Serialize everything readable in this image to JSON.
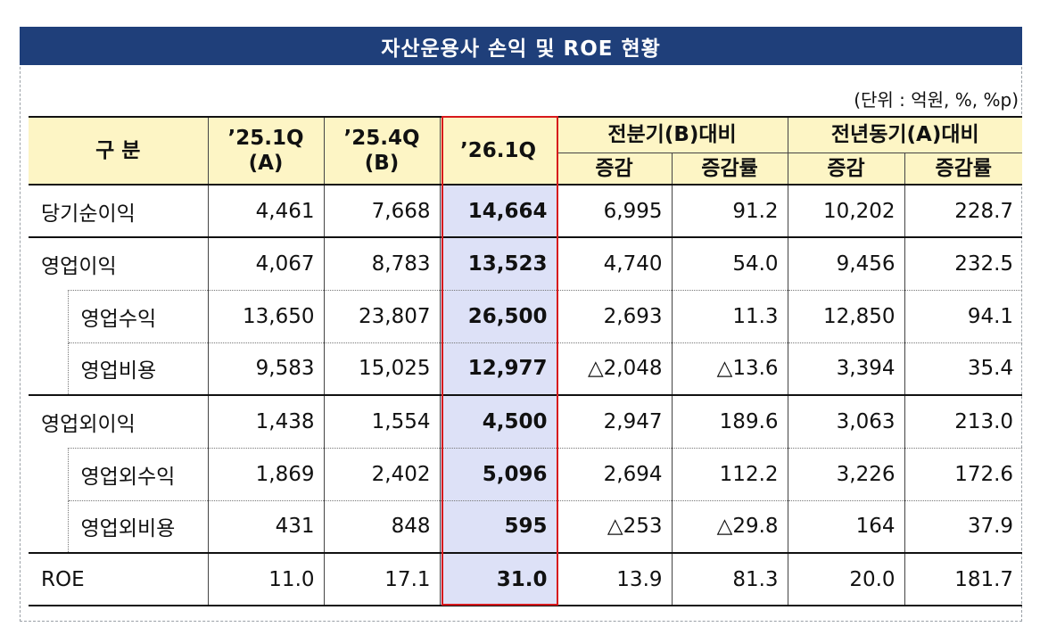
{
  "title": "자산운용사 손익 및 ROE 현황",
  "unit_note": "(단위 : 억원, %, %p)",
  "header": {
    "category": "구 분",
    "col_2501": "’25.1Q",
    "col_2501_sub": "(A)",
    "col_2504": "’25.4Q",
    "col_2504_sub": "(B)",
    "col_2601": "’26.1Q",
    "vs_prev_quarter": "전분기(B)대비",
    "vs_prev_year": "전년동기(A)대비",
    "change": "증감",
    "change_rate": "증감률"
  },
  "rows": [
    {
      "label": "당기순이익",
      "q2501": "4,461",
      "q2504": "7,668",
      "q2601": "14,664",
      "pq_chg": "6,995",
      "pq_rate": "91.2",
      "py_chg": "10,202",
      "py_rate": "228.7"
    },
    {
      "label": "영업이익",
      "q2501": "4,067",
      "q2504": "8,783",
      "q2601": "13,523",
      "pq_chg": "4,740",
      "pq_rate": "54.0",
      "py_chg": "9,456",
      "py_rate": "232.5"
    },
    {
      "label": "영업수익",
      "q2501": "13,650",
      "q2504": "23,807",
      "q2601": "26,500",
      "pq_chg": "2,693",
      "pq_rate": "11.3",
      "py_chg": "12,850",
      "py_rate": "94.1"
    },
    {
      "label": "영업비용",
      "q2501": "9,583",
      "q2504": "15,025",
      "q2601": "12,977",
      "pq_chg": "△2,048",
      "pq_rate": "△13.6",
      "py_chg": "3,394",
      "py_rate": "35.4"
    },
    {
      "label": "영업외이익",
      "q2501": "1,438",
      "q2504": "1,554",
      "q2601": "4,500",
      "pq_chg": "2,947",
      "pq_rate": "189.6",
      "py_chg": "3,063",
      "py_rate": "213.0"
    },
    {
      "label": "영업외수익",
      "q2501": "1,869",
      "q2504": "2,402",
      "q2601": "5,096",
      "pq_chg": "2,694",
      "pq_rate": "112.2",
      "py_chg": "3,226",
      "py_rate": "172.6"
    },
    {
      "label": "영업외비용",
      "q2501": "431",
      "q2504": "848",
      "q2601": "595",
      "pq_chg": "△253",
      "pq_rate": "△29.8",
      "py_chg": "164",
      "py_rate": "37.9"
    },
    {
      "label": "ROE",
      "q2501": "11.0",
      "q2504": "17.1",
      "q2601": "31.0",
      "pq_chg": "13.9",
      "pq_rate": "81.3",
      "py_chg": "20.0",
      "py_rate": "181.7"
    }
  ]
}
